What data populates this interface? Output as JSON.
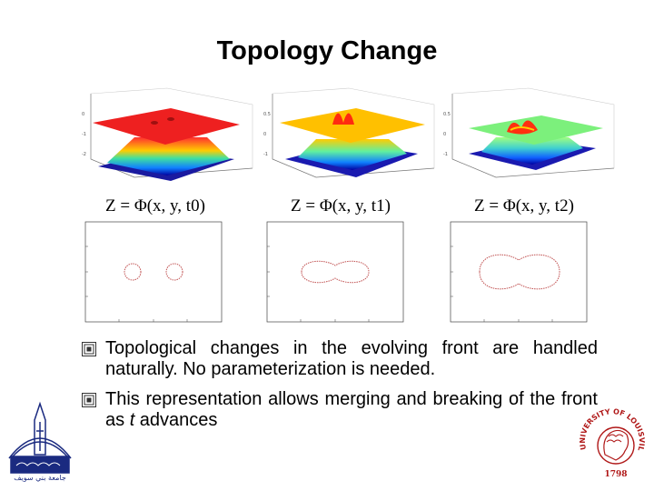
{
  "slide": {
    "title": "Topology Change",
    "panels": [
      {
        "id": "t0",
        "formula": "Z = Φ(x, y, t0)",
        "contour": "two circles"
      },
      {
        "id": "t1",
        "formula": "Z = Φ(x, y, t1)",
        "contour": "merging peanut"
      },
      {
        "id": "t2",
        "formula": "Z = Φ(x, y, t2)",
        "contour": "single blob"
      }
    ],
    "bullets": [
      "Topological changes in the evolving front are handled naturally. No parameterization is needed.",
      "This representation allows merging and breaking of the front as t advances"
    ],
    "colors": {
      "surface_t0": "#ff2020",
      "surface_t1": "#ffcc00",
      "surface_t2": "#80f080",
      "base_blue": "#0000b0",
      "contour": "#c05050",
      "bullet_icon": "#333333",
      "logo_red": "#b01818",
      "logo_blue": "#1a2a80"
    },
    "icons": [
      "square-bullet-icon",
      "university-logo-left",
      "university-of-louisville-seal"
    ],
    "logo_right_text": "UNIVERSITY OF LOUISVILLE",
    "logo_right_year": "1798"
  }
}
